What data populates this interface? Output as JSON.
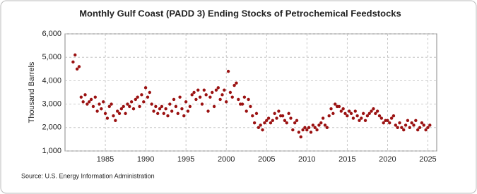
{
  "chart_data": {
    "type": "scatter",
    "title": "Monthly Gulf Coast (PADD 3) Ending Stocks of Petrochemical Feedstocks",
    "y_label": "Thousand Barrels",
    "source": "Source: U.S. Energy Information Administration",
    "series": [
      {
        "color": "#9b1212",
        "x": [
          1981,
          1981.25,
          1981.5,
          1981.75,
          1982,
          1982.25,
          1982.5,
          1982.75,
          1983,
          1983.25,
          1983.5,
          1983.75,
          1984,
          1984.25,
          1984.5,
          1984.75,
          1985,
          1985.25,
          1985.5,
          1985.75,
          1986,
          1986.25,
          1986.5,
          1986.75,
          1987,
          1987.25,
          1987.5,
          1987.75,
          1988,
          1988.25,
          1988.5,
          1988.75,
          1989,
          1989.25,
          1989.5,
          1989.75,
          1990,
          1990.25,
          1990.5,
          1990.75,
          1991,
          1991.25,
          1991.5,
          1991.75,
          1992,
          1992.25,
          1992.5,
          1992.75,
          1993,
          1993.25,
          1993.5,
          1993.75,
          1994,
          1994.25,
          1994.5,
          1994.75,
          1995,
          1995.25,
          1995.5,
          1995.75,
          1996,
          1996.25,
          1996.5,
          1996.75,
          1997,
          1997.25,
          1997.5,
          1997.75,
          1998,
          1998.25,
          1998.5,
          1998.75,
          1999,
          1999.25,
          1999.5,
          1999.75,
          2000,
          2000.25,
          2000.5,
          2000.75,
          2001,
          2001.25,
          2001.5,
          2001.75,
          2002,
          2002.25,
          2002.5,
          2002.75,
          2003,
          2003.25,
          2003.5,
          2003.75,
          2004,
          2004.25,
          2004.5,
          2004.75,
          2005,
          2005.25,
          2005.5,
          2005.75,
          2006,
          2006.25,
          2006.5,
          2006.75,
          2007,
          2007.25,
          2007.5,
          2007.75,
          2008,
          2008.25,
          2008.5,
          2008.75,
          2009,
          2009.25,
          2009.5,
          2009.75,
          2010,
          2010.25,
          2010.5,
          2010.75,
          2011,
          2011.25,
          2011.5,
          2011.75,
          2012,
          2012.25,
          2012.5,
          2012.75,
          2013,
          2013.25,
          2013.5,
          2013.75,
          2014,
          2014.25,
          2014.5,
          2014.75,
          2015,
          2015.25,
          2015.5,
          2015.75,
          2016,
          2016.25,
          2016.5,
          2016.75,
          2017,
          2017.25,
          2017.5,
          2017.75,
          2018,
          2018.25,
          2018.5,
          2018.75,
          2019,
          2019.25,
          2019.5,
          2019.75,
          2020,
          2020.25,
          2020.5,
          2020.75,
          2021,
          2021.25,
          2021.5,
          2021.75,
          2022,
          2022.25,
          2022.5,
          2022.75,
          2023,
          2023.25,
          2023.5,
          2023.75,
          2024,
          2024.25,
          2024.5,
          2024.75,
          2025,
          2025.25
        ],
        "values": [
          4800,
          5100,
          4500,
          4600,
          3300,
          3100,
          3400,
          3000,
          3100,
          3200,
          2900,
          3300,
          2700,
          3000,
          2800,
          3100,
          2600,
          2400,
          2900,
          3000,
          2500,
          2300,
          2700,
          2600,
          2800,
          2900,
          2600,
          3000,
          2900,
          3100,
          2800,
          3200,
          3300,
          2900,
          3400,
          3100,
          3700,
          3300,
          3500,
          3000,
          2700,
          2900,
          2600,
          2800,
          2900,
          2600,
          2800,
          2500,
          3000,
          2700,
          3200,
          2900,
          2600,
          3300,
          2800,
          2500,
          3100,
          2700,
          2900,
          3400,
          3500,
          3200,
          3600,
          3300,
          3000,
          3600,
          3400,
          2700,
          3300,
          3500,
          2900,
          3600,
          3700,
          3200,
          3400,
          3600,
          3100,
          4400,
          3500,
          3300,
          3800,
          3900,
          3200,
          3000,
          3000,
          3300,
          2700,
          3200,
          2900,
          2500,
          2200,
          2600,
          2000,
          2100,
          1900,
          2200,
          2300,
          2400,
          2200,
          2300,
          2600,
          2400,
          2700,
          2500,
          2500,
          2300,
          2200,
          2600,
          2400,
          1900,
          2200,
          2300,
          1800,
          1600,
          1900,
          2000,
          1900,
          2000,
          1800,
          2100,
          2000,
          1900,
          2100,
          2200,
          2400,
          2100,
          2000,
          2500,
          2800,
          2600,
          3000,
          2900,
          2900,
          2700,
          2800,
          2600,
          2500,
          2700,
          2600,
          2400,
          2700,
          2500,
          2300,
          2400,
          2600,
          2300,
          2500,
          2600,
          2700,
          2800,
          2600,
          2700,
          2500,
          2400,
          2200,
          2300,
          2300,
          2200,
          2400,
          2500,
          2100,
          2000,
          2200,
          2000,
          1900,
          2100,
          2300,
          2000,
          2200,
          2100,
          2300,
          1900,
          2000,
          2200,
          2100,
          1900,
          2000,
          2100
        ]
      }
    ],
    "xlim": [
      1980,
      2026.1
    ],
    "xticks": [
      1985,
      1990,
      1995,
      2000,
      2005,
      2010,
      2015,
      2020,
      2025
    ],
    "ylim": [
      1000,
      6000
    ],
    "yticks": [
      {
        "value": 1000,
        "label": "1,000"
      },
      {
        "value": 2000,
        "label": "2,000"
      },
      {
        "value": 3000,
        "label": "3,000"
      },
      {
        "value": 4000,
        "label": "4,000"
      },
      {
        "value": 5000,
        "label": "5,000"
      },
      {
        "value": 6000,
        "label": "6,000"
      }
    ],
    "grid": true
  }
}
